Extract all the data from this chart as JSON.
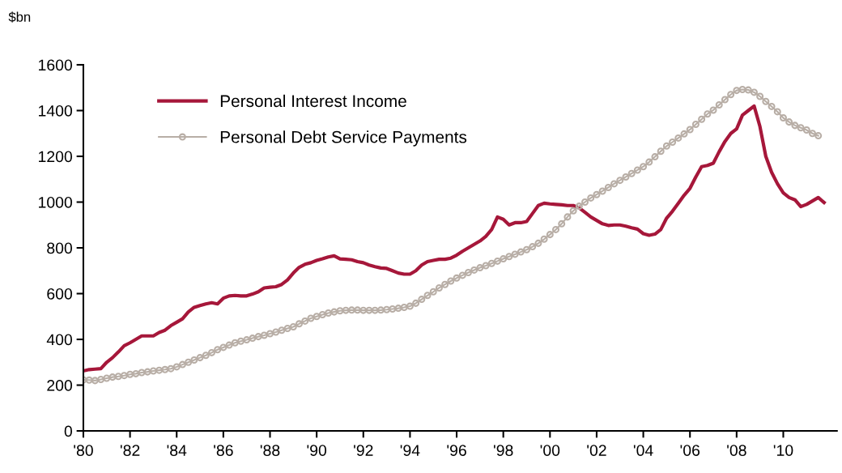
{
  "chart_data": {
    "type": "line",
    "ylabel": "$bn",
    "x": [
      1980,
      1980.25,
      1980.5,
      1980.75,
      1981,
      1981.25,
      1981.5,
      1981.75,
      1982,
      1982.25,
      1982.5,
      1982.75,
      1983,
      1983.25,
      1983.5,
      1983.75,
      1984,
      1984.25,
      1984.5,
      1984.75,
      1985,
      1985.25,
      1985.5,
      1985.75,
      1986,
      1986.25,
      1986.5,
      1986.75,
      1987,
      1987.25,
      1987.5,
      1987.75,
      1988,
      1988.25,
      1988.5,
      1988.75,
      1989,
      1989.25,
      1989.5,
      1989.75,
      1990,
      1990.25,
      1990.5,
      1990.75,
      1991,
      1991.25,
      1991.5,
      1991.75,
      1992,
      1992.25,
      1992.5,
      1992.75,
      1993,
      1993.25,
      1993.5,
      1993.75,
      1994,
      1994.25,
      1994.5,
      1994.75,
      1995,
      1995.25,
      1995.5,
      1995.75,
      1996,
      1996.25,
      1996.5,
      1996.75,
      1997,
      1997.25,
      1997.5,
      1997.75,
      1998,
      1998.25,
      1998.5,
      1998.75,
      1999,
      1999.25,
      1999.5,
      1999.75,
      2000,
      2000.25,
      2000.5,
      2000.75,
      2001,
      2001.25,
      2001.5,
      2001.75,
      2002,
      2002.25,
      2002.5,
      2002.75,
      2003,
      2003.25,
      2003.5,
      2003.75,
      2004,
      2004.25,
      2004.5,
      2004.75,
      2005,
      2005.25,
      2005.5,
      2005.75,
      2006,
      2006.25,
      2006.5,
      2006.75,
      2007,
      2007.25,
      2007.5,
      2007.75,
      2008,
      2008.25,
      2008.5,
      2008.75,
      2009,
      2009.25,
      2009.5,
      2009.75,
      2010,
      2010.25,
      2010.5,
      2010.75,
      2011,
      2011.25,
      2011.5,
      2011.75
    ],
    "series": [
      {
        "name": "Personal Interest Income",
        "color": "#a6173a",
        "marker": "none",
        "values": [
          262,
          268,
          270,
          272,
          300,
          320,
          345,
          372,
          385,
          400,
          415,
          415,
          415,
          430,
          440,
          460,
          475,
          490,
          520,
          540,
          548,
          555,
          560,
          555,
          580,
          590,
          592,
          590,
          590,
          598,
          608,
          625,
          628,
          630,
          640,
          660,
          690,
          715,
          728,
          735,
          745,
          752,
          760,
          765,
          752,
          750,
          748,
          740,
          735,
          725,
          718,
          712,
          710,
          700,
          690,
          685,
          685,
          700,
          725,
          740,
          745,
          750,
          750,
          755,
          768,
          785,
          800,
          815,
          830,
          850,
          880,
          935,
          925,
          900,
          910,
          910,
          915,
          950,
          985,
          995,
          992,
          990,
          988,
          985,
          985,
          975,
          955,
          935,
          920,
          905,
          898,
          900,
          900,
          895,
          888,
          882,
          862,
          855,
          860,
          880,
          930,
          960,
          995,
          1030,
          1060,
          1110,
          1155,
          1160,
          1170,
          1220,
          1265,
          1300,
          1320,
          1380,
          1400,
          1420,
          1330,
          1200,
          1130,
          1080,
          1040,
          1020,
          1010,
          980,
          990,
          1005,
          1020,
          998
        ]
      },
      {
        "name": "Personal Debt Service Payments",
        "color": "#b8aea6",
        "marker": "circle",
        "values": [
          223,
          222,
          220,
          225,
          230,
          235,
          238,
          242,
          247,
          250,
          255,
          258,
          262,
          265,
          268,
          272,
          280,
          290,
          300,
          310,
          320,
          330,
          342,
          355,
          365,
          375,
          385,
          392,
          398,
          405,
          412,
          418,
          425,
          432,
          440,
          448,
          455,
          468,
          480,
          492,
          500,
          508,
          515,
          520,
          525,
          527,
          528,
          528,
          527,
          527,
          527,
          528,
          530,
          533,
          536,
          540,
          545,
          558,
          575,
          592,
          608,
          625,
          640,
          655,
          668,
          680,
          692,
          703,
          713,
          722,
          732,
          742,
          752,
          762,
          772,
          782,
          792,
          805,
          820,
          838,
          858,
          880,
          905,
          935,
          962,
          982,
          1000,
          1018,
          1033,
          1048,
          1064,
          1080,
          1095,
          1110,
          1125,
          1140,
          1155,
          1175,
          1198,
          1222,
          1245,
          1262,
          1280,
          1298,
          1317,
          1340,
          1362,
          1385,
          1402,
          1425,
          1448,
          1470,
          1488,
          1492,
          1490,
          1480,
          1462,
          1440,
          1418,
          1395,
          1368,
          1350,
          1335,
          1325,
          1315,
          1300,
          1290,
          null
        ]
      }
    ],
    "xlim": [
      1980,
      2012.3
    ],
    "xticks": [
      {
        "value": 1980,
        "label": "'80"
      },
      {
        "value": 1982,
        "label": "'82"
      },
      {
        "value": 1984,
        "label": "'84"
      },
      {
        "value": 1986,
        "label": "'86"
      },
      {
        "value": 1988,
        "label": "'88"
      },
      {
        "value": 1990,
        "label": "'90"
      },
      {
        "value": 1992,
        "label": "'92"
      },
      {
        "value": 1994,
        "label": "'94"
      },
      {
        "value": 1996,
        "label": "'96"
      },
      {
        "value": 1998,
        "label": "'98"
      },
      {
        "value": 2000,
        "label": "'00"
      },
      {
        "value": 2002,
        "label": "'02"
      },
      {
        "value": 2004,
        "label": "'04"
      },
      {
        "value": 2006,
        "label": "'06"
      },
      {
        "value": 2008,
        "label": "'08"
      },
      {
        "value": 2010,
        "label": "'10"
      }
    ],
    "ylim": [
      0,
      1600
    ],
    "yticks": [
      0,
      200,
      400,
      600,
      800,
      1000,
      1200,
      1400,
      1600
    ],
    "grid": false,
    "legend": "top left",
    "line_style": "solid"
  }
}
